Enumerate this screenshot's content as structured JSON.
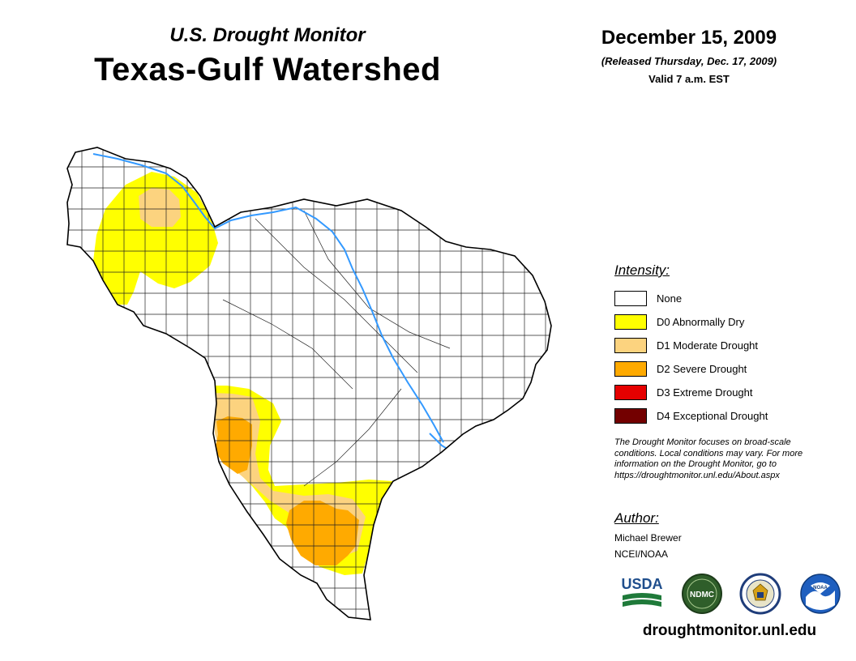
{
  "header": {
    "supertitle": "U.S. Drought Monitor",
    "title": "Texas-Gulf Watershed",
    "date": "December 15, 2009",
    "released": "(Released Thursday, Dec. 17, 2009)",
    "valid": "Valid 7 a.m. EST"
  },
  "legend": {
    "title": "Intensity:",
    "items": [
      {
        "label": "None",
        "color": "#ffffff"
      },
      {
        "label": "D0 Abnormally Dry",
        "color": "#ffff00"
      },
      {
        "label": "D1 Moderate Drought",
        "color": "#fcd37f"
      },
      {
        "label": "D2 Severe Drought",
        "color": "#ffaa00"
      },
      {
        "label": "D3 Extreme Drought",
        "color": "#e60000"
      },
      {
        "label": "D4 Exceptional Drought",
        "color": "#730000"
      }
    ]
  },
  "note": {
    "line1": "The Drought Monitor focuses on broad-scale",
    "line2": "conditions. Local conditions may vary. For more",
    "line3": "information on the Drought Monitor, go to",
    "line4": "https://droughtmonitor.unl.edu/About.aspx"
  },
  "author": {
    "title": "Author:",
    "name": "Michael Brewer",
    "org": "NCEI/NOAA"
  },
  "logos": {
    "usda": "USDA",
    "ndmc": "NDMC",
    "noaa": "NOAA"
  },
  "site": "droughtmonitor.unl.edu",
  "colors": {
    "river": "#3399ff",
    "county_line": "#222222"
  }
}
